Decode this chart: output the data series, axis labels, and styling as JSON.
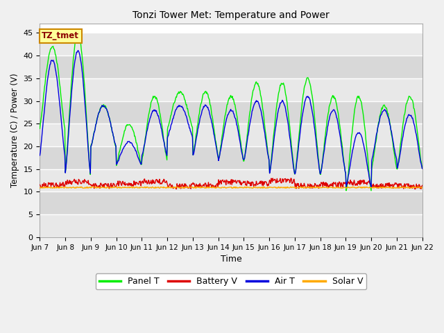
{
  "title": "Tonzi Tower Met: Temperature and Power",
  "xlabel": "Time",
  "ylabel": "Temperature (C) / Power (V)",
  "ylim": [
    0,
    47
  ],
  "yticks": [
    0,
    5,
    10,
    15,
    20,
    25,
    30,
    35,
    40,
    45
  ],
  "line_colors": {
    "panel_t": "#00ee00",
    "battery_v": "#dd0000",
    "air_t": "#0000dd",
    "solar_v": "#ffaa00"
  },
  "tz_label": "TZ_tmet",
  "x_tick_labels": [
    "Jun 7",
    "Jun 8",
    "Jun 9",
    "Jun 10",
    "Jun 11",
    "Jun 12",
    "Jun 13",
    "Jun 14",
    "Jun 15",
    "Jun 16",
    "Jun 17",
    "Jun 18",
    "Jun 19",
    "Jun 20",
    "Jun 21",
    "Jun 22"
  ],
  "n_days": 15,
  "pts_per_day": 48,
  "panel_t_peaks": [
    42,
    45,
    29,
    25,
    31,
    32,
    32,
    31,
    34,
    34,
    35,
    31,
    31,
    29,
    31
  ],
  "panel_t_troughs": [
    24,
    14,
    20,
    16,
    17,
    24,
    18,
    17,
    17,
    14,
    14,
    14,
    10,
    15,
    15
  ],
  "air_t_peaks": [
    39,
    41,
    29,
    21,
    28,
    29,
    29,
    28,
    30,
    30,
    31,
    28,
    23,
    28,
    27
  ],
  "air_t_troughs": [
    18,
    14,
    20,
    16,
    18,
    22,
    18,
    17,
    17,
    14,
    14,
    14,
    11,
    17,
    15
  ],
  "battery_v_data": [
    11.5,
    12.2,
    11.3,
    11.8,
    12.3,
    11.2,
    11.5,
    12.1,
    11.8,
    12.4,
    11.3,
    11.6,
    12.0,
    11.4,
    11.2
  ],
  "solar_v_base": 10.9
}
